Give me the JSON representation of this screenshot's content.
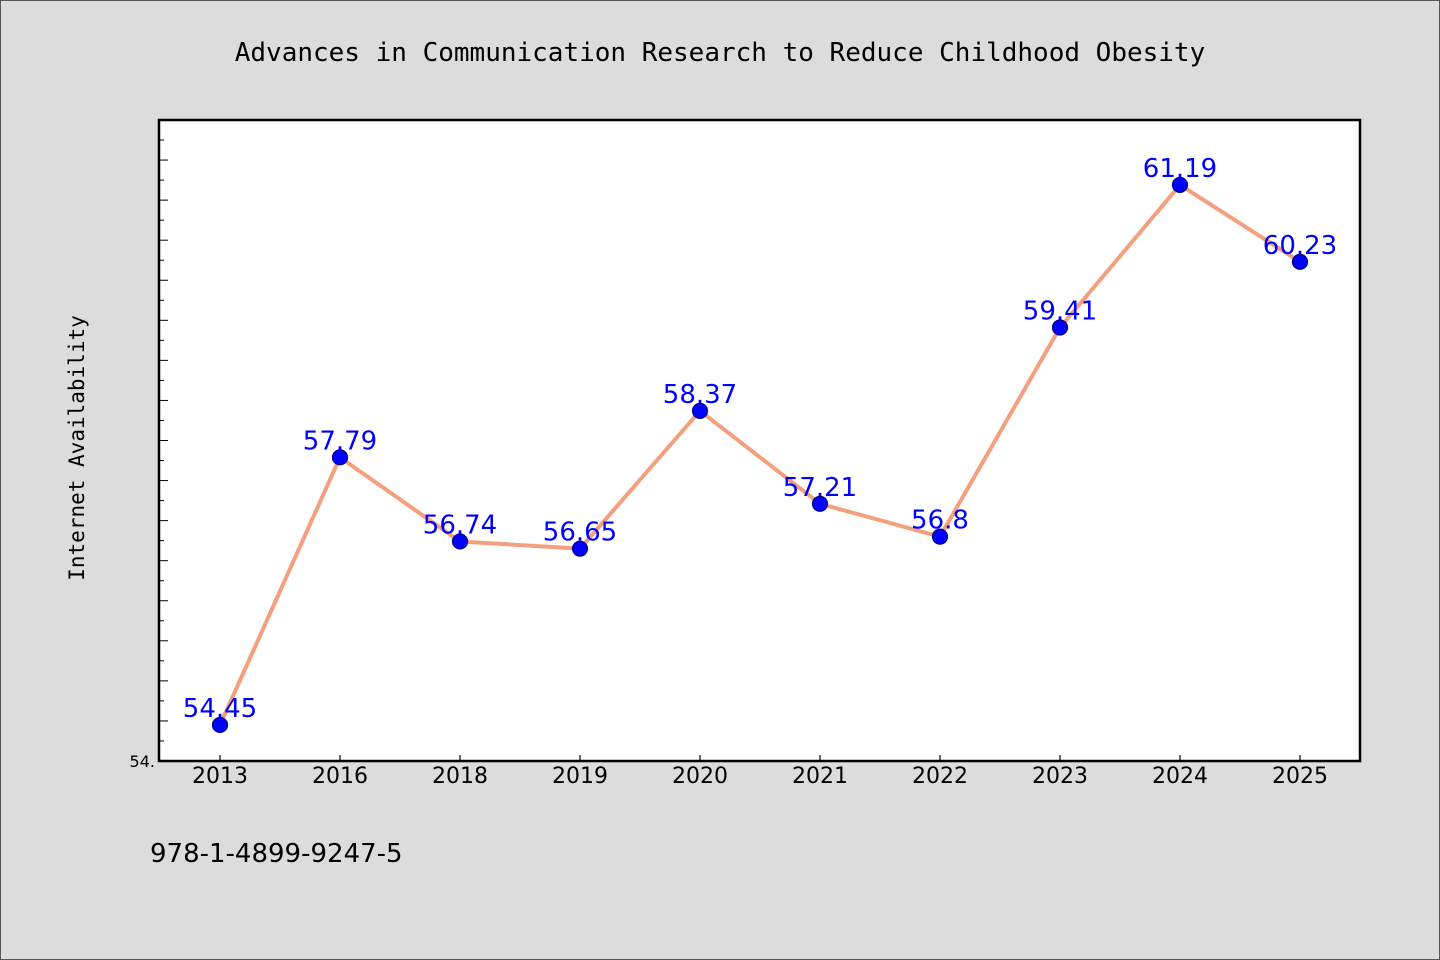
{
  "chart_data": {
    "type": "line",
    "title": "Advances in Communication Research to Reduce Childhood Obesity",
    "xlabel": "",
    "ylabel": "Internet Availability",
    "categories": [
      "2013",
      "2016",
      "2018",
      "2019",
      "2020",
      "2021",
      "2022",
      "2023",
      "2024",
      "2025"
    ],
    "series": [
      {
        "values": [
          54.45,
          57.79,
          56.74,
          56.65,
          58.37,
          57.21,
          56.8,
          59.41,
          61.19,
          60.23
        ],
        "data_labels": [
          "54.45",
          "57.79",
          "56.74",
          "56.65",
          "58.37",
          "57.21",
          "56.8",
          "59.41",
          "61.19",
          "60.23"
        ]
      }
    ],
    "ylim": [
      54.0,
      62.0
    ],
    "ytick_labels": [
      {
        "value": 54.0,
        "label": "54."
      }
    ],
    "grid": false,
    "legend": "none",
    "colors": {
      "line": "#f4a07e",
      "marker": "#0000ff",
      "marker_edge": "#000080",
      "data_label": "#0000ff",
      "background": "#dcdcdc",
      "plot_background": "#ffffff"
    }
  },
  "footer": {
    "isbn": "978-1-4899-9247-5"
  }
}
